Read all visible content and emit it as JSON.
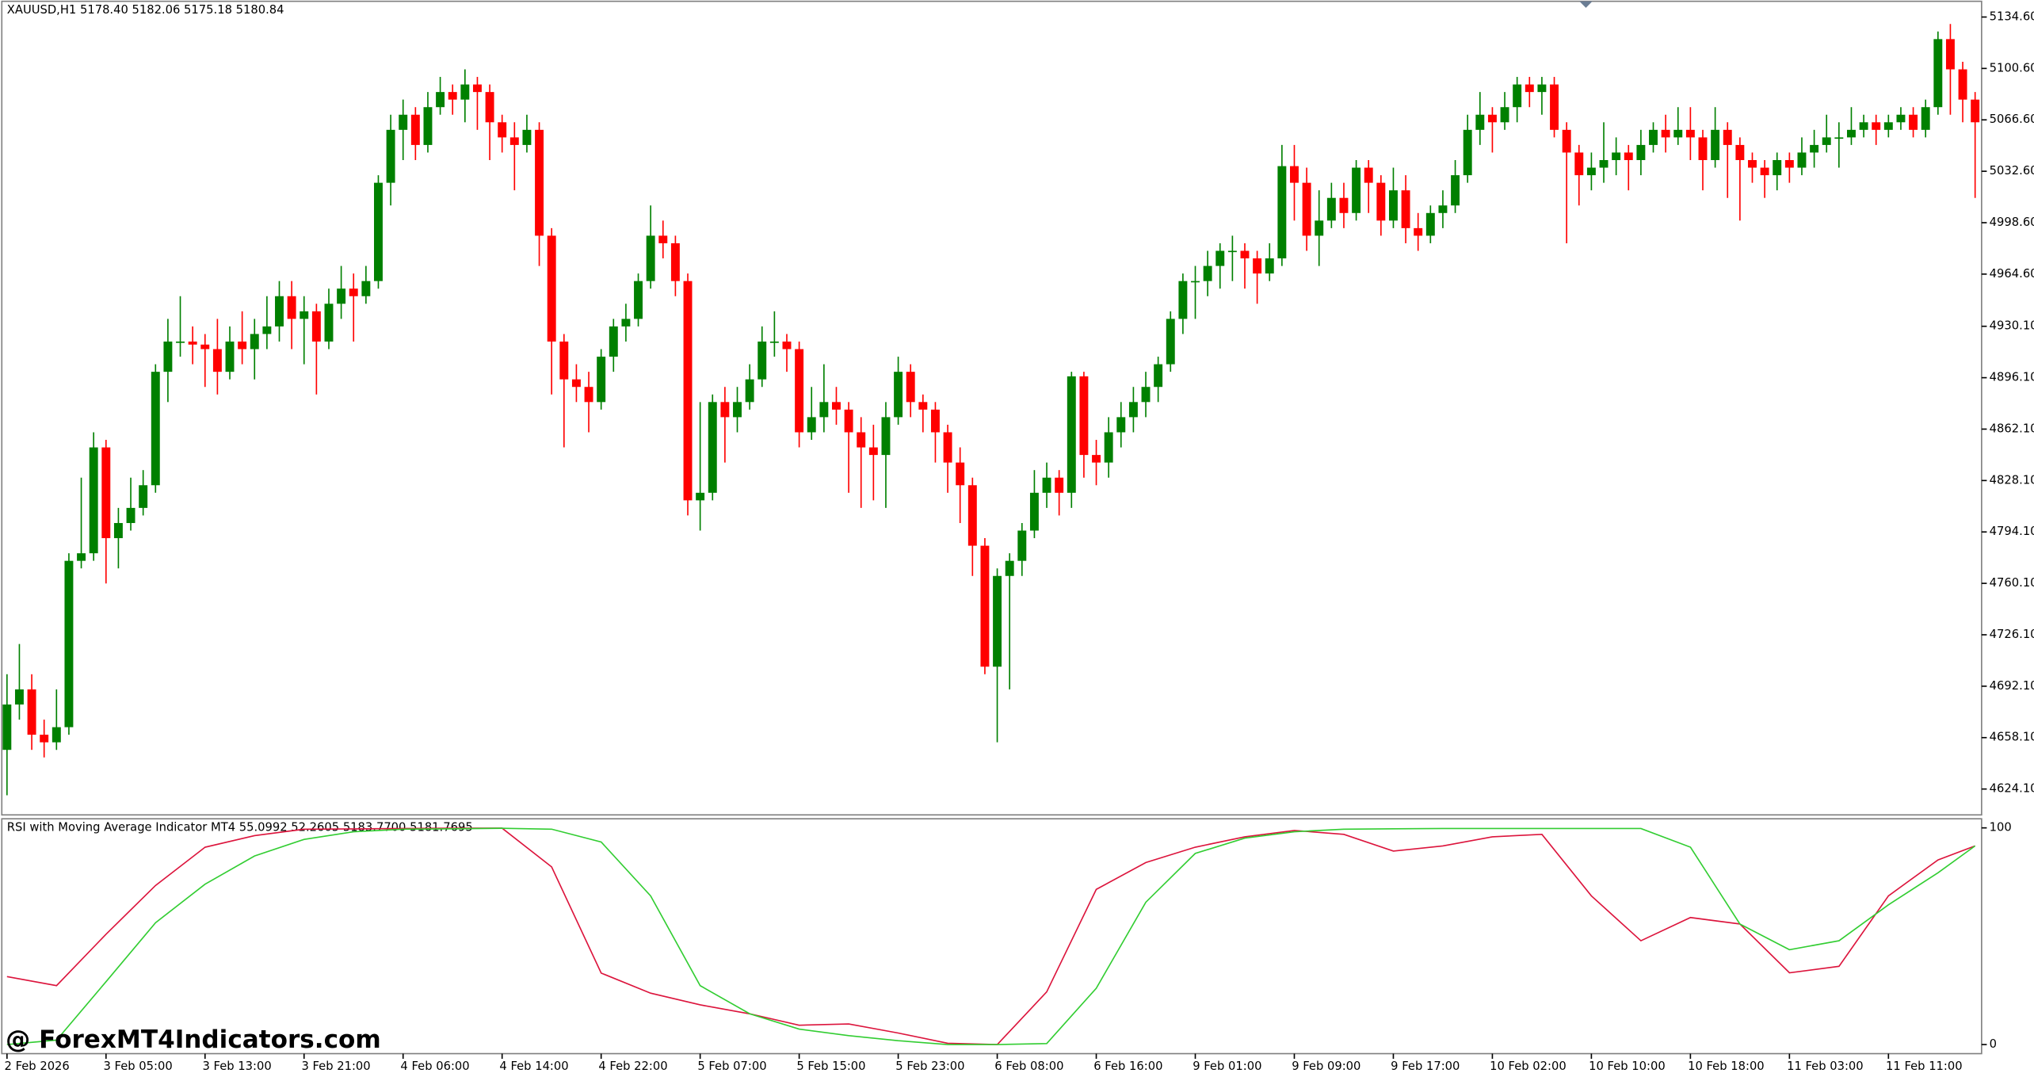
{
  "chart_data": [
    {
      "type": "candlestick",
      "title": "XAUUSD,H1  5178.40 5182.06 5175.18 5180.84",
      "up_color": "#008000",
      "down_color": "#ff0000",
      "open": [
        4650,
        4680,
        4690,
        4660,
        4655,
        4665,
        4775,
        4780,
        4850,
        4790,
        4800,
        4810,
        4825,
        4900,
        4920,
        4920,
        4918,
        4915,
        4900,
        4920,
        4915,
        4925,
        4930,
        4950,
        4935,
        4940,
        4920,
        4945,
        4955,
        4950,
        4960,
        5025,
        5060,
        5070,
        5050,
        5075,
        5085,
        5080,
        5090,
        5085,
        5065,
        5055,
        5050,
        5060,
        4990,
        4920,
        4895,
        4890,
        4880,
        4910,
        4930,
        4935,
        4960,
        4990,
        4985,
        4960,
        4815,
        4820,
        4880,
        4870,
        4880,
        4895,
        4920,
        4920,
        4915,
        4860,
        4870,
        4880,
        4875,
        4860,
        4850,
        4845,
        4870,
        4900,
        4880,
        4875,
        4860,
        4840,
        4825,
        4785,
        4705,
        4765,
        4775,
        4795,
        4820,
        4830,
        4820,
        4897,
        4845,
        4840,
        4860,
        4870,
        4880,
        4890,
        4905,
        4935,
        4960,
        4960,
        4970,
        4980,
        4980,
        4975,
        4965,
        4975,
        5036,
        5025,
        4990,
        5000,
        5015,
        5005,
        5035,
        5025,
        5000,
        5020,
        4995,
        4990,
        5005,
        5010,
        5030,
        5060,
        5070,
        5065,
        5075,
        5090,
        5085,
        5090,
        5060,
        5045,
        5030,
        5035,
        5040,
        5045,
        5040,
        5050,
        5060,
        5055,
        5060,
        5055,
        5040,
        5060,
        5050,
        5040,
        5035,
        5030,
        5040,
        5035,
        5045,
        5050,
        5055,
        5055,
        5060,
        5065,
        5060,
        5065,
        5070,
        5060,
        5075,
        5120,
        5100,
        5080
      ],
      "high": [
        4700,
        4720,
        4700,
        4670,
        4690,
        4780,
        4830,
        4860,
        4855,
        4810,
        4830,
        4835,
        4905,
        4935,
        4950,
        4930,
        4925,
        4935,
        4930,
        4940,
        4935,
        4950,
        4960,
        4960,
        4950,
        4945,
        4955,
        4970,
        4965,
        4970,
        5030,
        5070,
        5080,
        5075,
        5085,
        5095,
        5090,
        5100,
        5095,
        5090,
        5070,
        5065,
        5070,
        5065,
        4995,
        4925,
        4905,
        4900,
        4915,
        4935,
        4945,
        4965,
        5010,
        5000,
        4990,
        4965,
        4880,
        4885,
        4890,
        4890,
        4905,
        4930,
        4940,
        4925,
        4920,
        4890,
        4905,
        4890,
        4880,
        4870,
        4865,
        4880,
        4910,
        4905,
        4885,
        4880,
        4865,
        4850,
        4830,
        4790,
        4770,
        4780,
        4800,
        4835,
        4840,
        4835,
        4900,
        4900,
        4855,
        4870,
        4880,
        4890,
        4900,
        4910,
        4940,
        4965,
        4970,
        4980,
        4985,
        4990,
        4985,
        4980,
        4985,
        5050,
        5050,
        5035,
        5020,
        5025,
        5025,
        5040,
        5040,
        5030,
        5035,
        5030,
        5005,
        5010,
        5020,
        5040,
        5070,
        5085,
        5075,
        5085,
        5095,
        5095,
        5095,
        5095,
        5065,
        5050,
        5045,
        5065,
        5055,
        5050,
        5060,
        5065,
        5070,
        5075,
        5075,
        5060,
        5075,
        5065,
        5055,
        5045,
        5040,
        5045,
        5045,
        5055,
        5060,
        5070,
        5065,
        5075,
        5070,
        5070,
        5070,
        5075,
        5075,
        5080,
        5125,
        5130,
        5105,
        5085
      ],
      "low": [
        4620,
        4670,
        4650,
        4645,
        4650,
        4660,
        4770,
        4775,
        4760,
        4770,
        4795,
        4805,
        4820,
        4880,
        4910,
        4905,
        4890,
        4885,
        4895,
        4905,
        4895,
        4915,
        4920,
        4915,
        4905,
        4885,
        4915,
        4935,
        4920,
        4945,
        4955,
        5010,
        5040,
        5040,
        5045,
        5070,
        5070,
        5065,
        5060,
        5040,
        5045,
        5020,
        5045,
        4970,
        4885,
        4850,
        4880,
        4860,
        4875,
        4900,
        4920,
        4930,
        4955,
        4975,
        4950,
        4805,
        4795,
        4815,
        4840,
        4860,
        4875,
        4890,
        4910,
        4900,
        4850,
        4855,
        4860,
        4865,
        4820,
        4810,
        4815,
        4810,
        4865,
        4870,
        4860,
        4840,
        4820,
        4800,
        4765,
        4700,
        4655,
        4690,
        4765,
        4790,
        4810,
        4805,
        4810,
        4830,
        4825,
        4830,
        4850,
        4860,
        4870,
        4880,
        4900,
        4925,
        4935,
        4950,
        4955,
        4960,
        4955,
        4945,
        4960,
        4970,
        5000,
        4980,
        4970,
        4995,
        4995,
        5000,
        5005,
        4990,
        4995,
        4985,
        4980,
        4985,
        4995,
        5005,
        5025,
        5050,
        5045,
        5060,
        5065,
        5075,
        5070,
        5055,
        4985,
        5010,
        5020,
        5025,
        5030,
        5020,
        5030,
        5045,
        5045,
        5050,
        5040,
        5020,
        5035,
        5015,
        5000,
        5025,
        5015,
        5020,
        5025,
        5030,
        5035,
        5045,
        5035,
        5050,
        5055,
        5050,
        5055,
        5060,
        5055,
        5055,
        5070,
        5070,
        5065,
        5015
      ],
      "close": [
        4680,
        4690,
        4660,
        4655,
        4665,
        4775,
        4780,
        4850,
        4790,
        4800,
        4810,
        4825,
        4900,
        4920,
        4920,
        4918,
        4915,
        4900,
        4920,
        4915,
        4925,
        4930,
        4950,
        4935,
        4940,
        4920,
        4945,
        4955,
        4950,
        4960,
        5025,
        5060,
        5070,
        5050,
        5075,
        5085,
        5080,
        5090,
        5085,
        5065,
        5055,
        5050,
        5060,
        4990,
        4920,
        4895,
        4890,
        4880,
        4910,
        4930,
        4935,
        4960,
        4990,
        4985,
        4960,
        4815,
        4820,
        4880,
        4870,
        4880,
        4895,
        4920,
        4920,
        4915,
        4860,
        4870,
        4880,
        4875,
        4860,
        4850,
        4845,
        4870,
        4900,
        4880,
        4875,
        4860,
        4840,
        4825,
        4785,
        4705,
        4765,
        4775,
        4795,
        4820,
        4830,
        4820,
        4897,
        4845,
        4840,
        4860,
        4870,
        4880,
        4890,
        4905,
        4935,
        4960,
        4960,
        4970,
        4980,
        4980,
        4975,
        4965,
        4975,
        5036,
        5025,
        4990,
        5000,
        5015,
        5005,
        5035,
        5025,
        5000,
        5020,
        4995,
        4990,
        5005,
        5010,
        5030,
        5060,
        5070,
        5065,
        5075,
        5090,
        5085,
        5090,
        5060,
        5045,
        5030,
        5035,
        5040,
        5045,
        5040,
        5050,
        5060,
        5055,
        5060,
        5055,
        5040,
        5060,
        5050,
        5040,
        5035,
        5030,
        5040,
        5035,
        5045,
        5050,
        5055,
        5055,
        5060,
        5065,
        5060,
        5065,
        5070,
        5060,
        5075,
        5120,
        5100,
        5080,
        5065
      ],
      "xlim": [
        0,
        159
      ],
      "xticks": [
        {
          "value": 0,
          "label": "2 Feb 2026"
        },
        {
          "value": 8,
          "label": "3 Feb 05:00"
        },
        {
          "value": 16,
          "label": "3 Feb 13:00"
        },
        {
          "value": 24,
          "label": "3 Feb 21:00"
        },
        {
          "value": 32,
          "label": "4 Feb 06:00"
        },
        {
          "value": 40,
          "label": "4 Feb 14:00"
        },
        {
          "value": 48,
          "label": "4 Feb 22:00"
        },
        {
          "value": 56,
          "label": "5 Feb 07:00"
        },
        {
          "value": 64,
          "label": "5 Feb 15:00"
        },
        {
          "value": 72,
          "label": "5 Feb 23:00"
        },
        {
          "value": 80,
          "label": "6 Feb 08:00"
        },
        {
          "value": 88,
          "label": "6 Feb 16:00"
        },
        {
          "value": 96,
          "label": "9 Feb 01:00"
        },
        {
          "value": 104,
          "label": "9 Feb 09:00"
        },
        {
          "value": 112,
          "label": "9 Feb 17:00"
        },
        {
          "value": 120,
          "label": "10 Feb 02:00"
        },
        {
          "value": 128,
          "label": "10 Feb 10:00"
        },
        {
          "value": 136,
          "label": "10 Feb 18:00"
        },
        {
          "value": 144,
          "label": "11 Feb 03:00"
        },
        {
          "value": 152,
          "label": "11 Feb 11:00"
        }
      ],
      "ylim": [
        4607,
        5145
      ],
      "yticks": [
        {
          "value": 5134.6,
          "label": "5134.60"
        },
        {
          "value": 5100.6,
          "label": "5100.60"
        },
        {
          "value": 5066.6,
          "label": "5066.60"
        },
        {
          "value": 5032.6,
          "label": "5032.60"
        },
        {
          "value": 4998.6,
          "label": "4998.60"
        },
        {
          "value": 4964.6,
          "label": "4964.60"
        },
        {
          "value": 4930.1,
          "label": "4930.10"
        },
        {
          "value": 4896.1,
          "label": "4896.10"
        },
        {
          "value": 4862.1,
          "label": "4862.10"
        },
        {
          "value": 4828.1,
          "label": "4828.10"
        },
        {
          "value": 4794.1,
          "label": "4794.10"
        },
        {
          "value": 4760.1,
          "label": "4760.10"
        },
        {
          "value": 4726.1,
          "label": "4726.10"
        },
        {
          "value": 4692.1,
          "label": "4692.10"
        },
        {
          "value": 4658.1,
          "label": "4658.10"
        },
        {
          "value": 4624.1,
          "label": "4624.10"
        }
      ]
    },
    {
      "type": "line",
      "title": "RSI with Moving Average Indicator MT4 55.0992 52.2605 5183.7700 5181.7695",
      "x": [
        0,
        4,
        8,
        12,
        16,
        20,
        24,
        28,
        32,
        36,
        40,
        44,
        48,
        52,
        56,
        60,
        64,
        68,
        72,
        76,
        80,
        84,
        88,
        92,
        96,
        100,
        104,
        108,
        112,
        116,
        120,
        124,
        128,
        132,
        136,
        140,
        144,
        148,
        152,
        156,
        159
      ],
      "xlim": [
        0,
        159
      ],
      "series": [
        {
          "color": "#dc143c",
          "values": [
            31.4,
            27.2,
            50.9,
            73.4,
            91.1,
            96.4,
            99.4,
            99.5,
            99.7,
            99.8,
            99.9,
            82,
            33,
            23.7,
            18.3,
            14.2,
            8.9,
            9.5,
            5.3,
            0.6,
            0,
            24.3,
            71.6,
            84,
            91.1,
            95.9,
            98.8,
            97,
            89.3,
            91.7,
            95.9,
            97,
            68.6,
            47.9,
            58.6,
            55.6,
            33.1,
            36.1,
            68.6,
            85.2,
            91.7
          ]
        },
        {
          "color": "#32cd32",
          "values": [
            0,
            2,
            29,
            56.2,
            74,
            87,
            94.7,
            98.2,
            99.4,
            99.6,
            99.8,
            99.4,
            93.5,
            68.6,
            27.2,
            14.2,
            7.1,
            4.1,
            1.8,
            0,
            0,
            0.5,
            26,
            65.7,
            88.2,
            95.3,
            98.2,
            99.4,
            99.6,
            99.7,
            99.7,
            99.7,
            99.7,
            99.7,
            91.1,
            55.6,
            43.8,
            47.9,
            64.5,
            79.3,
            91.7
          ]
        }
      ],
      "ylim": [
        -3.6,
        103.6
      ],
      "yticks": [
        0,
        100
      ]
    }
  ],
  "watermark": "@ ForexMT4Indicators.com"
}
